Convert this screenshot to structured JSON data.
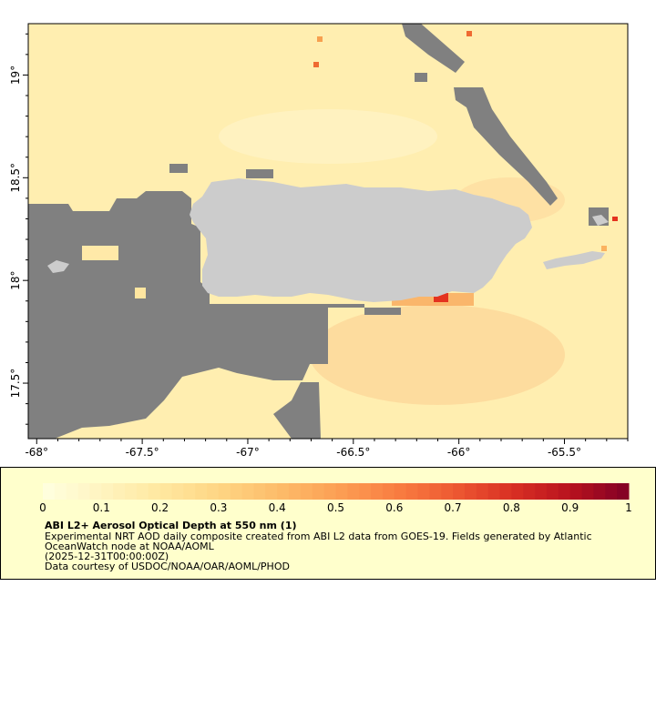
{
  "map": {
    "lon_ticks": [
      "-68°",
      "-67.5°",
      "-67°",
      "-66.5°",
      "-66°",
      "-65.5°"
    ],
    "lon_values": [
      -68,
      -67.5,
      -67,
      -66.5,
      -66,
      -65.5
    ],
    "lat_ticks": [
      "19°",
      "18.5°",
      "18°",
      "17.5°"
    ],
    "lat_values": [
      19,
      18.5,
      18,
      17.5
    ],
    "lon_range": [
      -68.04,
      -65.2
    ],
    "lat_range": [
      17.23,
      19.25
    ],
    "colors": {
      "land": "#cccccc",
      "no_data": "#808080",
      "aod_low": "#ffefb0",
      "aod_mid": "#fdbd6a",
      "aod_high": "#e7431f"
    }
  },
  "legend": {
    "title": "ABI L2+ Aerosol Optical Depth at 550 nm (1)",
    "description": "Experimental NRT AOD daily composite created from ABI L2 data from GOES-19. Fields generated by Atlantic OceanWatch node at NOAA/AOML",
    "date": "(2025-12-31T00:00:00Z)",
    "credit": "Data courtesy of USDOC/NOAA/OAR/AOML/PHOD",
    "colorbar_labels": [
      "0",
      "0.1",
      "0.2",
      "0.3",
      "0.4",
      "0.5",
      "0.6",
      "0.7",
      "0.8",
      "0.9",
      "1"
    ],
    "colorbar_range": [
      0,
      1
    ],
    "colorbar_colors": [
      "#ffffe0",
      "#fff4c0",
      "#ffe8a0",
      "#fed584",
      "#fdbd6a",
      "#fca055",
      "#f97f42",
      "#ee5a32",
      "#d93024",
      "#b8121e",
      "#800026"
    ]
  }
}
